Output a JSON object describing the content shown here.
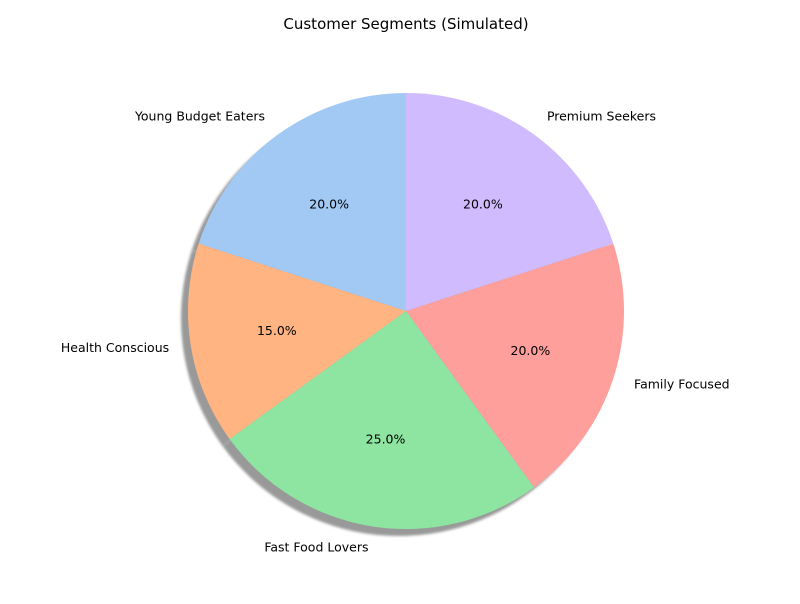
{
  "chart_data": {
    "type": "pie",
    "title": "Customer Segments (Simulated)",
    "start_angle_deg": 90,
    "direction": "counterclockwise",
    "shadow": true,
    "slices": [
      {
        "label": "Young Budget Eaters",
        "value": 20,
        "pct_label": "20.0%",
        "color": "#a1c9f4"
      },
      {
        "label": "Health Conscious",
        "value": 15,
        "pct_label": "15.0%",
        "color": "#ffb482"
      },
      {
        "label": "Fast Food Lovers",
        "value": 25,
        "pct_label": "25.0%",
        "color": "#8de5a1"
      },
      {
        "label": "Family Focused",
        "value": 20,
        "pct_label": "20.0%",
        "color": "#ff9f9b"
      },
      {
        "label": "Premium Seekers",
        "value": 20,
        "pct_label": "20.0%",
        "color": "#d0bbff"
      }
    ]
  }
}
